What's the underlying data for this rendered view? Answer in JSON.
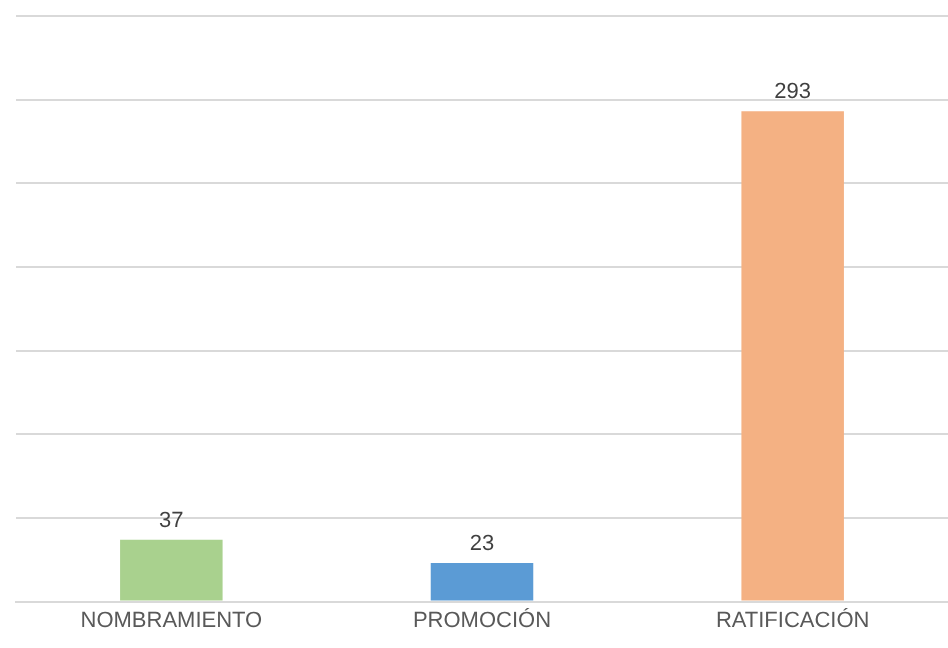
{
  "chart_data": {
    "type": "bar",
    "categories": [
      "NOMBRAMIENTO",
      "PROMOCIÓN",
      "RATIFICACIÓN"
    ],
    "values": [
      37,
      23,
      293
    ],
    "colors": [
      "#a9d18e",
      "#5b9bd5",
      "#f4b183"
    ],
    "ylim": [
      0,
      350
    ],
    "yticks": [
      {
        "value": 0,
        "label": null
      },
      {
        "value": 50,
        "label": null
      },
      {
        "value": 100,
        "label": null
      },
      {
        "value": 150,
        "label": null
      },
      {
        "value": 200,
        "label": null
      },
      {
        "value": 250,
        "label": null
      },
      {
        "value": 300,
        "label": null
      },
      {
        "value": 350,
        "label": null
      }
    ],
    "grid": "y",
    "tick_labels": "x",
    "data_labels": true,
    "legend": false
  }
}
